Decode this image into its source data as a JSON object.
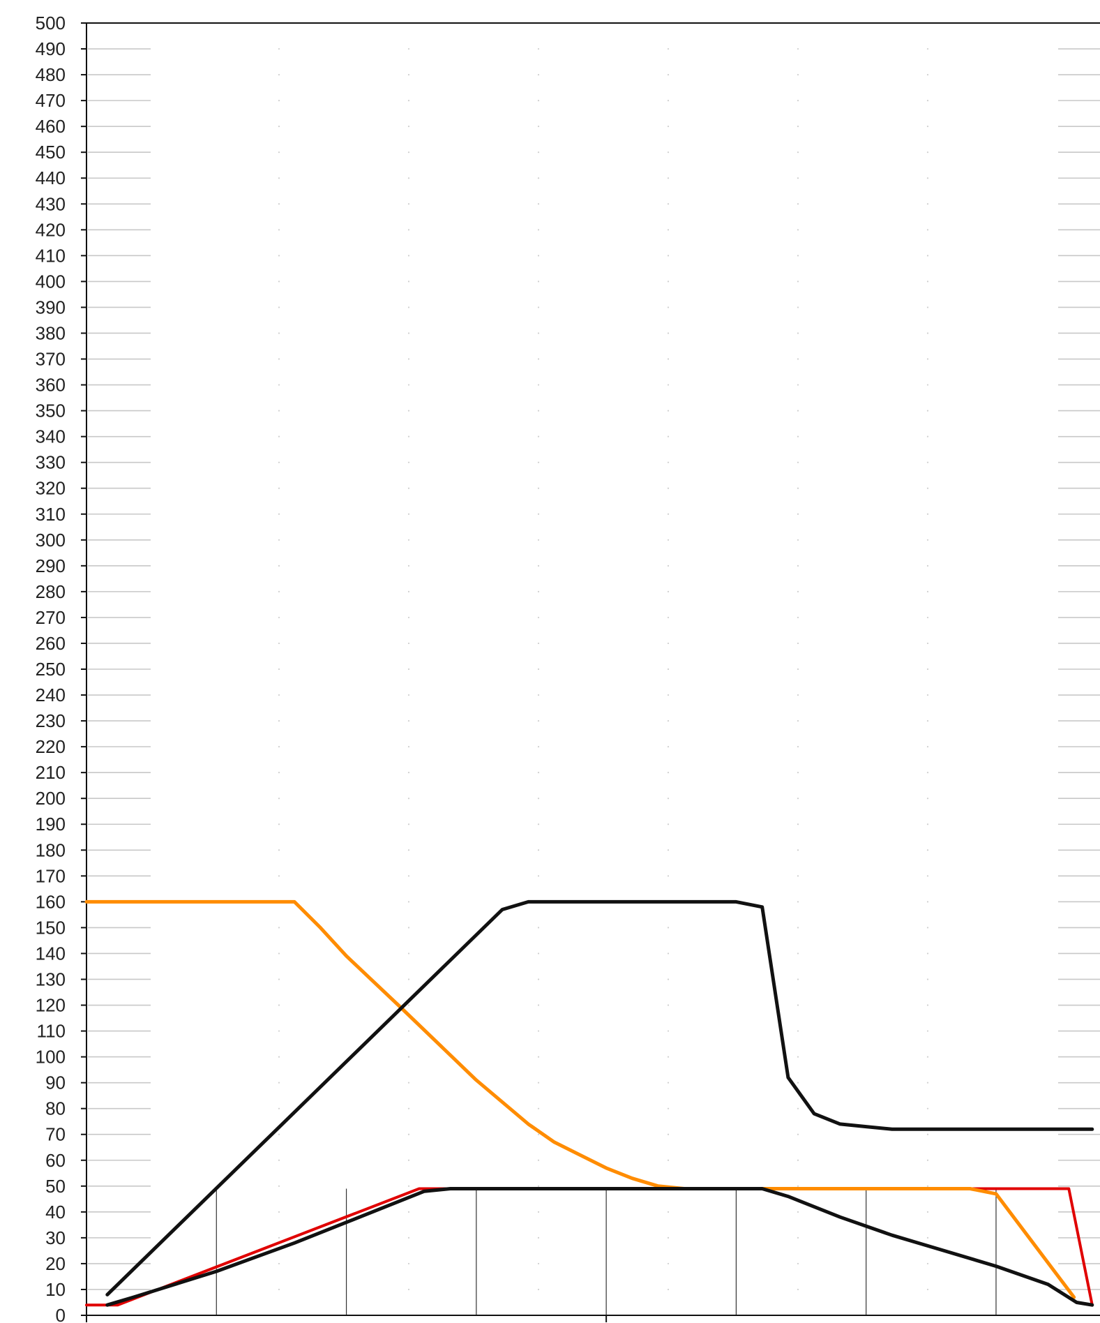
{
  "chart_data": {
    "type": "line",
    "title": "",
    "xlabel": "",
    "ylabel": "",
    "xlim": [
      0,
      39
    ],
    "ylim": [
      0,
      500
    ],
    "ytick_step": 10,
    "grid": "dotted",
    "legend": "none",
    "vertical_lines_x": [
      5,
      10,
      15,
      20,
      25,
      30,
      35
    ],
    "series": [
      {
        "color": "#ff8c00",
        "points": [
          [
            0,
            160
          ],
          [
            1,
            160
          ],
          [
            8,
            160
          ],
          [
            9,
            150
          ],
          [
            10,
            139
          ],
          [
            12,
            120
          ],
          [
            15,
            91
          ],
          [
            17,
            74
          ],
          [
            18,
            67
          ],
          [
            20,
            57
          ],
          [
            21,
            53
          ],
          [
            22,
            50
          ],
          [
            23,
            49
          ],
          [
            34,
            49
          ],
          [
            35,
            47
          ],
          [
            38,
            7
          ]
        ]
      },
      {
        "color": "#111111",
        "points": [
          [
            0.8,
            8
          ],
          [
            16,
            157
          ],
          [
            17,
            160
          ],
          [
            25,
            160
          ],
          [
            26,
            158
          ],
          [
            27,
            92
          ],
          [
            28,
            78
          ],
          [
            29,
            74
          ],
          [
            30,
            73
          ],
          [
            31,
            72
          ],
          [
            38.7,
            72
          ]
        ]
      },
      {
        "color": "#e00000",
        "points": [
          [
            0,
            4
          ],
          [
            1.2,
            4
          ],
          [
            12.8,
            49
          ],
          [
            37.8,
            49
          ],
          [
            38.7,
            4
          ]
        ]
      },
      {
        "color": "#111111",
        "points": [
          [
            0.8,
            4
          ],
          [
            1.8,
            7
          ],
          [
            5,
            17
          ],
          [
            8,
            28
          ],
          [
            10,
            36
          ],
          [
            13,
            48
          ],
          [
            14,
            49
          ],
          [
            26,
            49
          ],
          [
            27,
            46
          ],
          [
            29,
            38
          ],
          [
            31,
            31
          ],
          [
            33,
            25
          ],
          [
            35,
            19
          ],
          [
            37,
            12
          ],
          [
            38.1,
            5
          ],
          [
            38.7,
            4
          ]
        ]
      }
    ]
  }
}
